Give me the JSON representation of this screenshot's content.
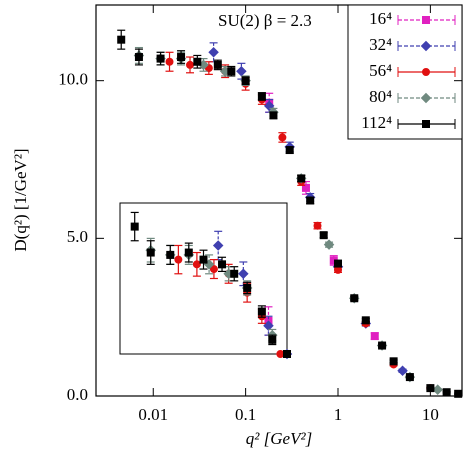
{
  "chart_data": {
    "type": "scatter",
    "annotation": "SU(2)  β = 2.3",
    "xlabel": "q²   [GeV²]",
    "ylabel": "D(q²)   [1/GeV²]",
    "xscale": "log",
    "xlim": [
      0.0024,
      22
    ],
    "ylim": [
      0,
      12.4
    ],
    "xticks": [
      0.01,
      0.1,
      1,
      10
    ],
    "yticks": [
      {
        "value": 0,
        "label": "0.0"
      },
      {
        "value": 5,
        "label": "5.0"
      },
      {
        "value": 10,
        "label": "10.0"
      }
    ],
    "legend": "upper right",
    "inset": {
      "xlim": [
        0.003,
        0.3
      ],
      "ylim": [
        8.6,
        11.8
      ]
    },
    "series": [
      {
        "name": "16⁴",
        "color": "#e020c0",
        "marker": "square",
        "line": "dashed",
        "x": [
          0.18,
          0.45,
          0.9,
          2.5
        ],
        "values": [
          9.3,
          6.6,
          4.3,
          1.9
        ],
        "errors": [
          0.3,
          0.2,
          0.15,
          0.1
        ]
      },
      {
        "name": "32⁴",
        "color": "#4040b0",
        "marker": "diamond",
        "line": "dashed",
        "x": [
          0.045,
          0.09,
          0.18,
          0.3,
          0.5,
          1,
          2,
          5
        ],
        "values": [
          10.9,
          10.3,
          9.2,
          7.9,
          6.3,
          4.1,
          2.3,
          0.8
        ],
        "errors": [
          0.3,
          0.25,
          0.2,
          0.15,
          0.12,
          0.1,
          0.08,
          0.05
        ]
      },
      {
        "name": "56⁴",
        "color": "#e01010",
        "marker": "circle",
        "line": "solid",
        "x": [
          0.015,
          0.025,
          0.04,
          0.06,
          0.1,
          0.15,
          0.25,
          0.4,
          0.6,
          1,
          2,
          4,
          10
        ],
        "values": [
          10.6,
          10.5,
          10.4,
          10.3,
          9.9,
          9.4,
          8.2,
          6.8,
          5.4,
          4.0,
          2.3,
          1.0,
          0.25
        ],
        "errors": [
          0.3,
          0.25,
          0.2,
          0.2,
          0.2,
          0.15,
          0.15,
          0.12,
          0.1,
          0.08,
          0.06,
          0.04,
          0.03
        ]
      },
      {
        "name": "80⁴",
        "color": "#708a80",
        "marker": "diamond",
        "line": "dashed",
        "x": [
          0.007,
          0.012,
          0.02,
          0.035,
          0.06,
          0.1,
          0.2,
          0.4,
          0.8,
          1.5,
          3,
          6,
          12
        ],
        "values": [
          10.8,
          10.7,
          10.7,
          10.5,
          10.3,
          10.0,
          9.0,
          6.9,
          4.8,
          3.1,
          1.6,
          0.6,
          0.2
        ],
        "errors": [
          0.25,
          0.2,
          0.2,
          0.2,
          0.15,
          0.15,
          0.12,
          0.1,
          0.08,
          0.06,
          0.05,
          0.04,
          0.03
        ]
      },
      {
        "name": "112⁴",
        "color": "#000000",
        "marker": "square",
        "line": "solid",
        "x": [
          0.0045,
          0.007,
          0.012,
          0.02,
          0.03,
          0.05,
          0.07,
          0.1,
          0.15,
          0.2,
          0.3,
          0.4,
          0.5,
          0.7,
          1,
          1.5,
          2,
          3,
          4,
          6,
          10,
          15,
          20
        ],
        "values": [
          11.3,
          10.75,
          10.7,
          10.75,
          10.6,
          10.5,
          10.3,
          10.0,
          9.5,
          8.9,
          7.8,
          6.9,
          6.2,
          5.1,
          4.2,
          3.1,
          2.4,
          1.6,
          1.1,
          0.6,
          0.25,
          0.12,
          0.07
        ],
        "errors": [
          0.3,
          0.25,
          0.2,
          0.2,
          0.2,
          0.15,
          0.15,
          0.12,
          0.12,
          0.1,
          0.1,
          0.1,
          0.1,
          0.08,
          0.08,
          0.06,
          0.05,
          0.05,
          0.04,
          0.03,
          0.02,
          0.02,
          0.02
        ]
      }
    ]
  }
}
